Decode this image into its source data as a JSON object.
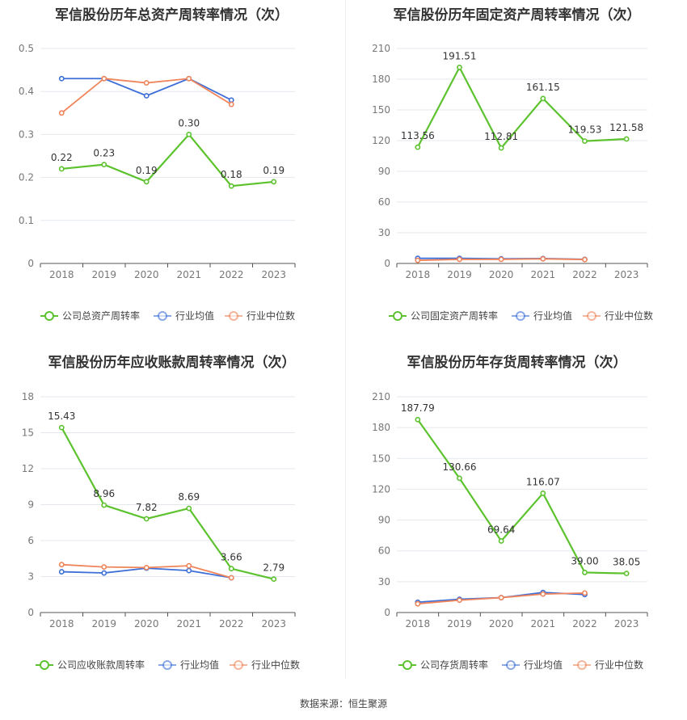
{
  "source": "数据来源：恒生聚源",
  "colors": {
    "company": "#5cc22e",
    "avg": "#3e6fd8",
    "median": "#f0845a",
    "grid": "#e4e7ee",
    "axis": "#777777"
  },
  "legend_labels": [
    "行业均值",
    "行业中位数"
  ],
  "chart_data": [
    {
      "type": "line",
      "title": "军信股份历年总资产周转率情况（次）",
      "categories": [
        "2018",
        "2019",
        "2020",
        "2021",
        "2022",
        "2023"
      ],
      "ylim": [
        0,
        0.5
      ],
      "yticks": [
        "0",
        "0.1",
        "0.2",
        "0.3",
        "0.4",
        "0.5"
      ],
      "series": [
        {
          "name": "公司总资产周转率",
          "values": [
            0.22,
            0.23,
            0.19,
            0.3,
            0.18,
            0.19
          ],
          "labels": [
            "0.22",
            "0.23",
            "0.19",
            "0.30",
            "0.18",
            "0.19"
          ]
        },
        {
          "name": "行业均值",
          "values": [
            0.43,
            0.43,
            0.39,
            0.43,
            0.38,
            null
          ]
        },
        {
          "name": "行业中位数",
          "values": [
            0.35,
            0.43,
            0.42,
            0.43,
            0.37,
            null
          ]
        }
      ]
    },
    {
      "type": "line",
      "title": "军信股份历年固定资产周转率情况（次）",
      "categories": [
        "2018",
        "2019",
        "2020",
        "2021",
        "2022",
        "2023"
      ],
      "ylim": [
        0,
        210
      ],
      "yticks": [
        "0",
        "30",
        "60",
        "90",
        "120",
        "150",
        "180",
        "210"
      ],
      "series": [
        {
          "name": "公司固定资产周转率",
          "values": [
            113.56,
            191.51,
            112.81,
            161.15,
            119.53,
            121.58
          ],
          "labels": [
            "113.56",
            "191.51",
            "112.81",
            "161.15",
            "119.53",
            "121.58"
          ]
        },
        {
          "name": "行业均值",
          "values": [
            5.0,
            5.0,
            4.5,
            4.8,
            4.0,
            null
          ]
        },
        {
          "name": "行业中位数",
          "values": [
            3.0,
            4.0,
            4.0,
            4.5,
            3.8,
            null
          ]
        }
      ]
    },
    {
      "type": "line",
      "title": "军信股份历年应收账款周转率情况（次）",
      "categories": [
        "2018",
        "2019",
        "2020",
        "2021",
        "2022",
        "2023"
      ],
      "ylim": [
        0,
        18
      ],
      "yticks": [
        "0",
        "3",
        "6",
        "9",
        "12",
        "15",
        "18"
      ],
      "series": [
        {
          "name": "公司应收账款周转率",
          "values": [
            15.43,
            8.96,
            7.82,
            8.69,
            3.66,
            2.79
          ],
          "labels": [
            "15.43",
            "8.96",
            "7.82",
            "8.69",
            "3.66",
            "2.79"
          ]
        },
        {
          "name": "行业均值",
          "values": [
            3.4,
            3.3,
            3.7,
            3.5,
            2.9,
            null
          ]
        },
        {
          "name": "行业中位数",
          "values": [
            4.0,
            3.8,
            3.75,
            3.9,
            2.9,
            null
          ]
        }
      ]
    },
    {
      "type": "line",
      "title": "军信股份历年存货周转率情况（次）",
      "categories": [
        "2018",
        "2019",
        "2020",
        "2021",
        "2022",
        "2023"
      ],
      "ylim": [
        0,
        210
      ],
      "yticks": [
        "0",
        "30",
        "60",
        "90",
        "120",
        "150",
        "180",
        "210"
      ],
      "series": [
        {
          "name": "公司存货周转率",
          "values": [
            187.79,
            130.66,
            69.64,
            116.07,
            39.0,
            38.05
          ],
          "labels": [
            "187.79",
            "130.66",
            "69.64",
            "116.07",
            "39.00",
            "38.05"
          ]
        },
        {
          "name": "行业均值",
          "values": [
            10,
            13,
            14.5,
            19.5,
            17.5,
            null
          ]
        },
        {
          "name": "行业中位数",
          "values": [
            8.5,
            12,
            14.5,
            18,
            19,
            null
          ]
        }
      ]
    }
  ]
}
